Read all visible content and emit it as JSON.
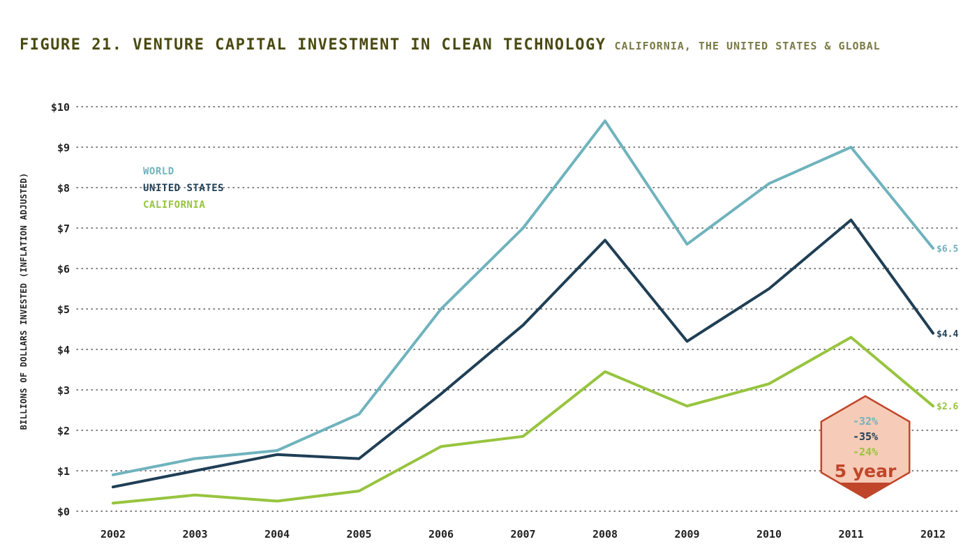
{
  "header": {
    "title": "FIGURE 21. VENTURE CAPITAL INVESTMENT IN CLEAN TECHNOLOGY",
    "subtitle": "CALIFORNIA, THE UNITED STATES & GLOBAL"
  },
  "chart_data": {
    "type": "line",
    "title": "FIGURE 21. VENTURE CAPITAL INVESTMENT IN CLEAN TECHNOLOGY",
    "subtitle": "CALIFORNIA, THE UNITED STATES & GLOBAL",
    "xlabel": "",
    "ylabel": "BILLIONS OF DOLLARS INVESTED (INFLATION ADJUSTED)",
    "x": [
      "2002",
      "2003",
      "2004",
      "2005",
      "2006",
      "2007",
      "2008",
      "2009",
      "2010",
      "2011",
      "2012"
    ],
    "ylim": [
      0,
      10
    ],
    "yticks": [
      "$0",
      "$1",
      "$2",
      "$3",
      "$4",
      "$5",
      "$6",
      "$7",
      "$8",
      "$9",
      "$10"
    ],
    "grid": "horizontal dotted",
    "legend_position": "top-left",
    "series": [
      {
        "name": "WORLD",
        "color": "#6fb3bd",
        "values": [
          0.9,
          1.3,
          1.5,
          2.4,
          5.0,
          7.0,
          9.65,
          6.6,
          8.1,
          9.0,
          6.5
        ],
        "end_label": "$6.5"
      },
      {
        "name": "UNITED STATES",
        "color": "#1f3f55",
        "values": [
          0.6,
          1.0,
          1.4,
          1.3,
          2.9,
          4.6,
          6.7,
          4.2,
          5.5,
          7.2,
          4.4
        ],
        "end_label": "$4.4"
      },
      {
        "name": "CALIFORNIA",
        "color": "#97c43e",
        "values": [
          0.2,
          0.4,
          0.25,
          0.5,
          1.6,
          1.85,
          3.45,
          2.6,
          3.15,
          4.3,
          2.6
        ],
        "end_label": "$2.6"
      }
    ],
    "badge": {
      "changes": [
        {
          "text": "-32%",
          "color": "#6fb3bd"
        },
        {
          "text": "-35%",
          "color": "#1f3f55"
        },
        {
          "text": "-24%",
          "color": "#97c43e"
        }
      ],
      "period": "5 year",
      "fill": "#f6cbb7",
      "stroke": "#c0462a"
    }
  }
}
